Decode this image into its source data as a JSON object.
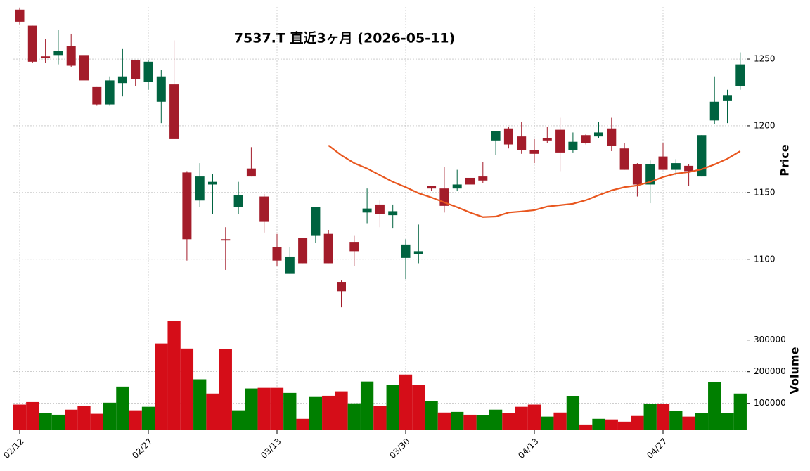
{
  "chart_data": [
    {
      "type": "candlestick",
      "title": "7537.T 直近3ヶ月 (2026-05-11)",
      "ylabel": "Price",
      "ylim": [
        1063,
        1289
      ],
      "yticks": [
        1100,
        1150,
        1200,
        1250
      ],
      "grid": true,
      "up_color": "#006340",
      "down_color": "#a31c2a",
      "open": [
        1287,
        1275,
        1252,
        1253,
        1260,
        1253,
        1229,
        1216,
        1232,
        1249,
        1233,
        1218,
        1231,
        1165,
        1144,
        1156,
        1115,
        1139,
        1168,
        1147,
        1109,
        1089,
        1116,
        1118,
        1119,
        1083,
        1113,
        1135,
        1141,
        1133,
        1101,
        1104,
        1155,
        1153,
        1153,
        1161,
        1162,
        1189,
        1198,
        1192,
        1182,
        1191,
        1197,
        1182,
        1193,
        1192,
        1198,
        1183,
        1171,
        1156,
        1177,
        1167,
        1170,
        1162,
        1204,
        1219,
        1230
      ],
      "high": [
        1288,
        1275,
        1265,
        1272,
        1269,
        1253,
        1229,
        1237,
        1258,
        1249,
        1249,
        1242,
        1264,
        1166,
        1172,
        1164,
        1124,
        1158,
        1184,
        1149,
        1119,
        1109,
        1116,
        1139,
        1122,
        1084,
        1118,
        1153,
        1144,
        1141,
        1115,
        1126,
        1155,
        1169,
        1167,
        1166,
        1173,
        1196,
        1199,
        1203,
        1190,
        1199,
        1206,
        1195,
        1194,
        1203,
        1206,
        1187,
        1172,
        1174,
        1187,
        1175,
        1171,
        1193,
        1237,
        1227,
        1255
      ],
      "low": [
        1276,
        1247,
        1247,
        1246,
        1244,
        1227,
        1215,
        1215,
        1222,
        1230,
        1227,
        1202,
        1190,
        1099,
        1139,
        1134,
        1092,
        1134,
        1162,
        1120,
        1095,
        1089,
        1097,
        1112,
        1097,
        1064,
        1095,
        1127,
        1124,
        1123,
        1085,
        1097,
        1151,
        1135,
        1151,
        1150,
        1157,
        1178,
        1183,
        1179,
        1172,
        1187,
        1166,
        1180,
        1186,
        1191,
        1181,
        1167,
        1147,
        1142,
        1167,
        1163,
        1155,
        1162,
        1201,
        1202,
        1227
      ],
      "close": [
        1278,
        1248,
        1251,
        1256,
        1245,
        1234,
        1216,
        1234,
        1237,
        1235,
        1248,
        1237,
        1190,
        1115,
        1162,
        1158,
        1114,
        1148,
        1162,
        1128,
        1099,
        1102,
        1097,
        1139,
        1097,
        1076,
        1106,
        1138,
        1134,
        1136,
        1111,
        1106,
        1153,
        1140,
        1156,
        1156,
        1159,
        1196,
        1186,
        1182,
        1179,
        1189,
        1180,
        1188,
        1187,
        1195,
        1185,
        1167,
        1156,
        1171,
        1167,
        1172,
        1166,
        1193,
        1218,
        1223,
        1246
      ],
      "line_color": "#e8561e",
      "line_values": [
        null,
        null,
        null,
        null,
        null,
        null,
        null,
        null,
        null,
        null,
        null,
        null,
        null,
        null,
        null,
        null,
        null,
        null,
        null,
        null,
        null,
        null,
        null,
        null,
        1185.3,
        1177.9,
        1172,
        1168,
        1163,
        1158,
        1154,
        1149.5,
        1146.3,
        1142.6,
        1139,
        1135,
        1131.6,
        1132,
        1135,
        1135.8,
        1136.8,
        1139.5,
        1140.5,
        1141.6,
        1144.2,
        1148,
        1151.6,
        1154,
        1155.3,
        1158,
        1161.6,
        1164.2,
        1165.3,
        1167.4,
        1171,
        1175.3,
        1181
      ]
    },
    {
      "type": "bar",
      "ylabel": "Volume",
      "ylim": [
        15000,
        397000
      ],
      "yticks": [
        100000,
        200000,
        300000
      ],
      "grid": true,
      "categories": [
        "02/12",
        null,
        null,
        null,
        null,
        null,
        null,
        null,
        null,
        null,
        "02/27",
        null,
        null,
        null,
        null,
        null,
        null,
        null,
        null,
        null,
        "03/13",
        null,
        null,
        null,
        null,
        null,
        null,
        null,
        null,
        null,
        "03/30",
        null,
        null,
        null,
        null,
        null,
        null,
        null,
        null,
        null,
        "04/13",
        null,
        null,
        null,
        null,
        null,
        null,
        null,
        null,
        null,
        "04/27",
        null,
        null,
        null,
        null,
        null,
        null
      ],
      "values": [
        96000,
        104000,
        69000,
        64000,
        80000,
        91000,
        67000,
        102000,
        153000,
        78000,
        89000,
        289000,
        360000,
        273000,
        176000,
        131000,
        271000,
        78000,
        147000,
        149000,
        149000,
        133000,
        51000,
        120000,
        124000,
        138000,
        100000,
        169000,
        91000,
        158000,
        191000,
        158000,
        107000,
        71000,
        73000,
        64000,
        62000,
        80000,
        69000,
        89000,
        96000,
        58000,
        71000,
        122000,
        33000,
        51000,
        49000,
        42000,
        60000,
        98000,
        98000,
        76000,
        58000,
        69000,
        167000,
        69000,
        131000
      ],
      "colors": [
        "#d50d18",
        "#d50d18",
        "#007f00",
        "#007f00",
        "#d50d18",
        "#d50d18",
        "#d50d18",
        "#007f00",
        "#007f00",
        "#d50d18",
        "#007f00",
        "#d50d18",
        "#d50d18",
        "#d50d18",
        "#007f00",
        "#d50d18",
        "#d50d18",
        "#007f00",
        "#007f00",
        "#d50d18",
        "#d50d18",
        "#007f00",
        "#d50d18",
        "#007f00",
        "#d50d18",
        "#d50d18",
        "#007f00",
        "#007f00",
        "#d50d18",
        "#007f00",
        "#d50d18",
        "#d50d18",
        "#007f00",
        "#d50d18",
        "#007f00",
        "#d50d18",
        "#007f00",
        "#007f00",
        "#d50d18",
        "#d50d18",
        "#d50d18",
        "#007f00",
        "#d50d18",
        "#007f00",
        "#d50d18",
        "#007f00",
        "#d50d18",
        "#d50d18",
        "#d50d18",
        "#007f00",
        "#d50d18",
        "#007f00",
        "#d50d18",
        "#007f00",
        "#007f00",
        "#007f00",
        "#007f00"
      ]
    }
  ]
}
